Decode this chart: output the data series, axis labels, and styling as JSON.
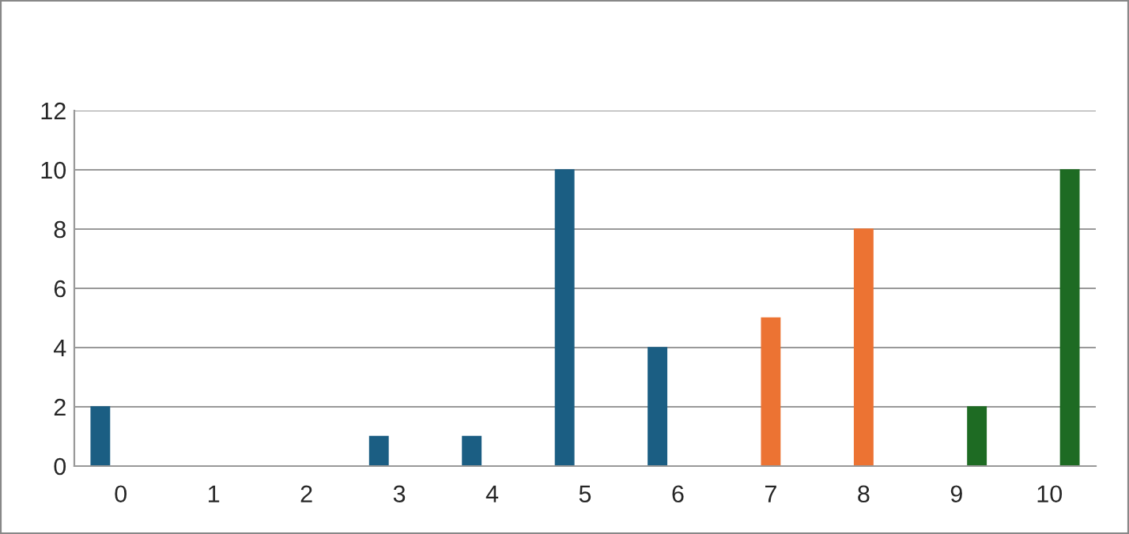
{
  "chart_data": {
    "type": "bar",
    "categories": [
      "0",
      "1",
      "2",
      "3",
      "4",
      "5",
      "6",
      "7",
      "8",
      "9",
      "10"
    ],
    "series": [
      {
        "color": "#1b5e83",
        "values": [
          2,
          0,
          0,
          1,
          1,
          10,
          4,
          null,
          null,
          null,
          null
        ]
      },
      {
        "color": "#ec7333",
        "values": [
          null,
          null,
          null,
          null,
          null,
          null,
          null,
          5,
          8,
          null,
          null
        ]
      },
      {
        "color": "#1e6b23",
        "values": [
          null,
          null,
          null,
          null,
          null,
          null,
          null,
          null,
          null,
          2,
          10
        ]
      }
    ],
    "ylim": [
      0,
      12
    ],
    "yticks": [
      0,
      2,
      4,
      6,
      8,
      10,
      12
    ],
    "grid": "y",
    "legend": false
  }
}
